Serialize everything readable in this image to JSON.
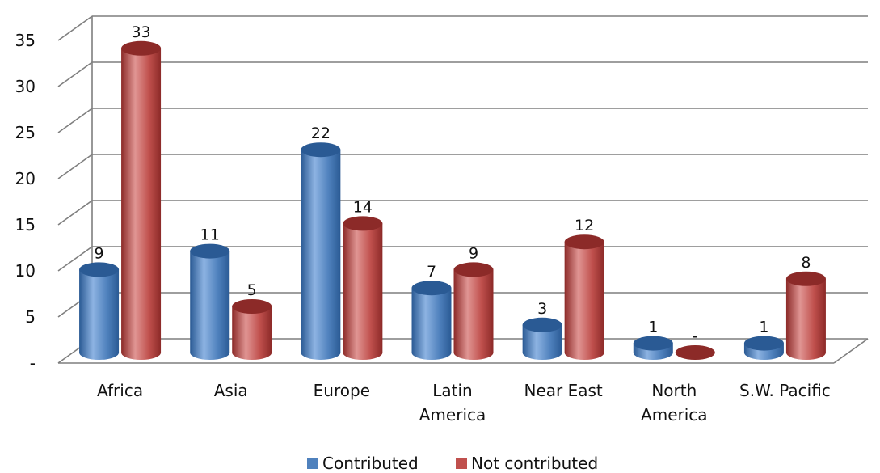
{
  "chart_data": {
    "type": "bar",
    "categories": [
      [
        "Africa"
      ],
      [
        "Asia"
      ],
      [
        "Europe"
      ],
      [
        "Latin",
        "America"
      ],
      [
        "Near East"
      ],
      [
        "North",
        "America"
      ],
      [
        "S.W. Pacific"
      ]
    ],
    "series": [
      {
        "name": "Contributed",
        "values": [
          9,
          11,
          22,
          7,
          3,
          1,
          1
        ],
        "labels": [
          "9",
          "11",
          "22",
          "7",
          "3",
          "1",
          "1"
        ],
        "color": "#4f81bd",
        "dark": "#2a5a94",
        "light": "#8db3e2"
      },
      {
        "name": "Not contributed",
        "values": [
          33,
          5,
          14,
          9,
          12,
          0,
          8
        ],
        "labels": [
          "33",
          "5",
          "14",
          "9",
          "12",
          "-",
          "8"
        ],
        "color": "#c0504d",
        "dark": "#8c2a28",
        "light": "#e09593"
      }
    ],
    "ylim": [
      0,
      35
    ],
    "yticks": [
      0,
      5,
      10,
      15,
      20,
      25,
      30,
      35
    ],
    "ytick_labels": [
      "-",
      "5",
      "10",
      "15",
      "20",
      "25",
      "30",
      "35"
    ],
    "grid": true,
    "legend_position": "bottom",
    "gridline_color": "#7f7f7f"
  }
}
